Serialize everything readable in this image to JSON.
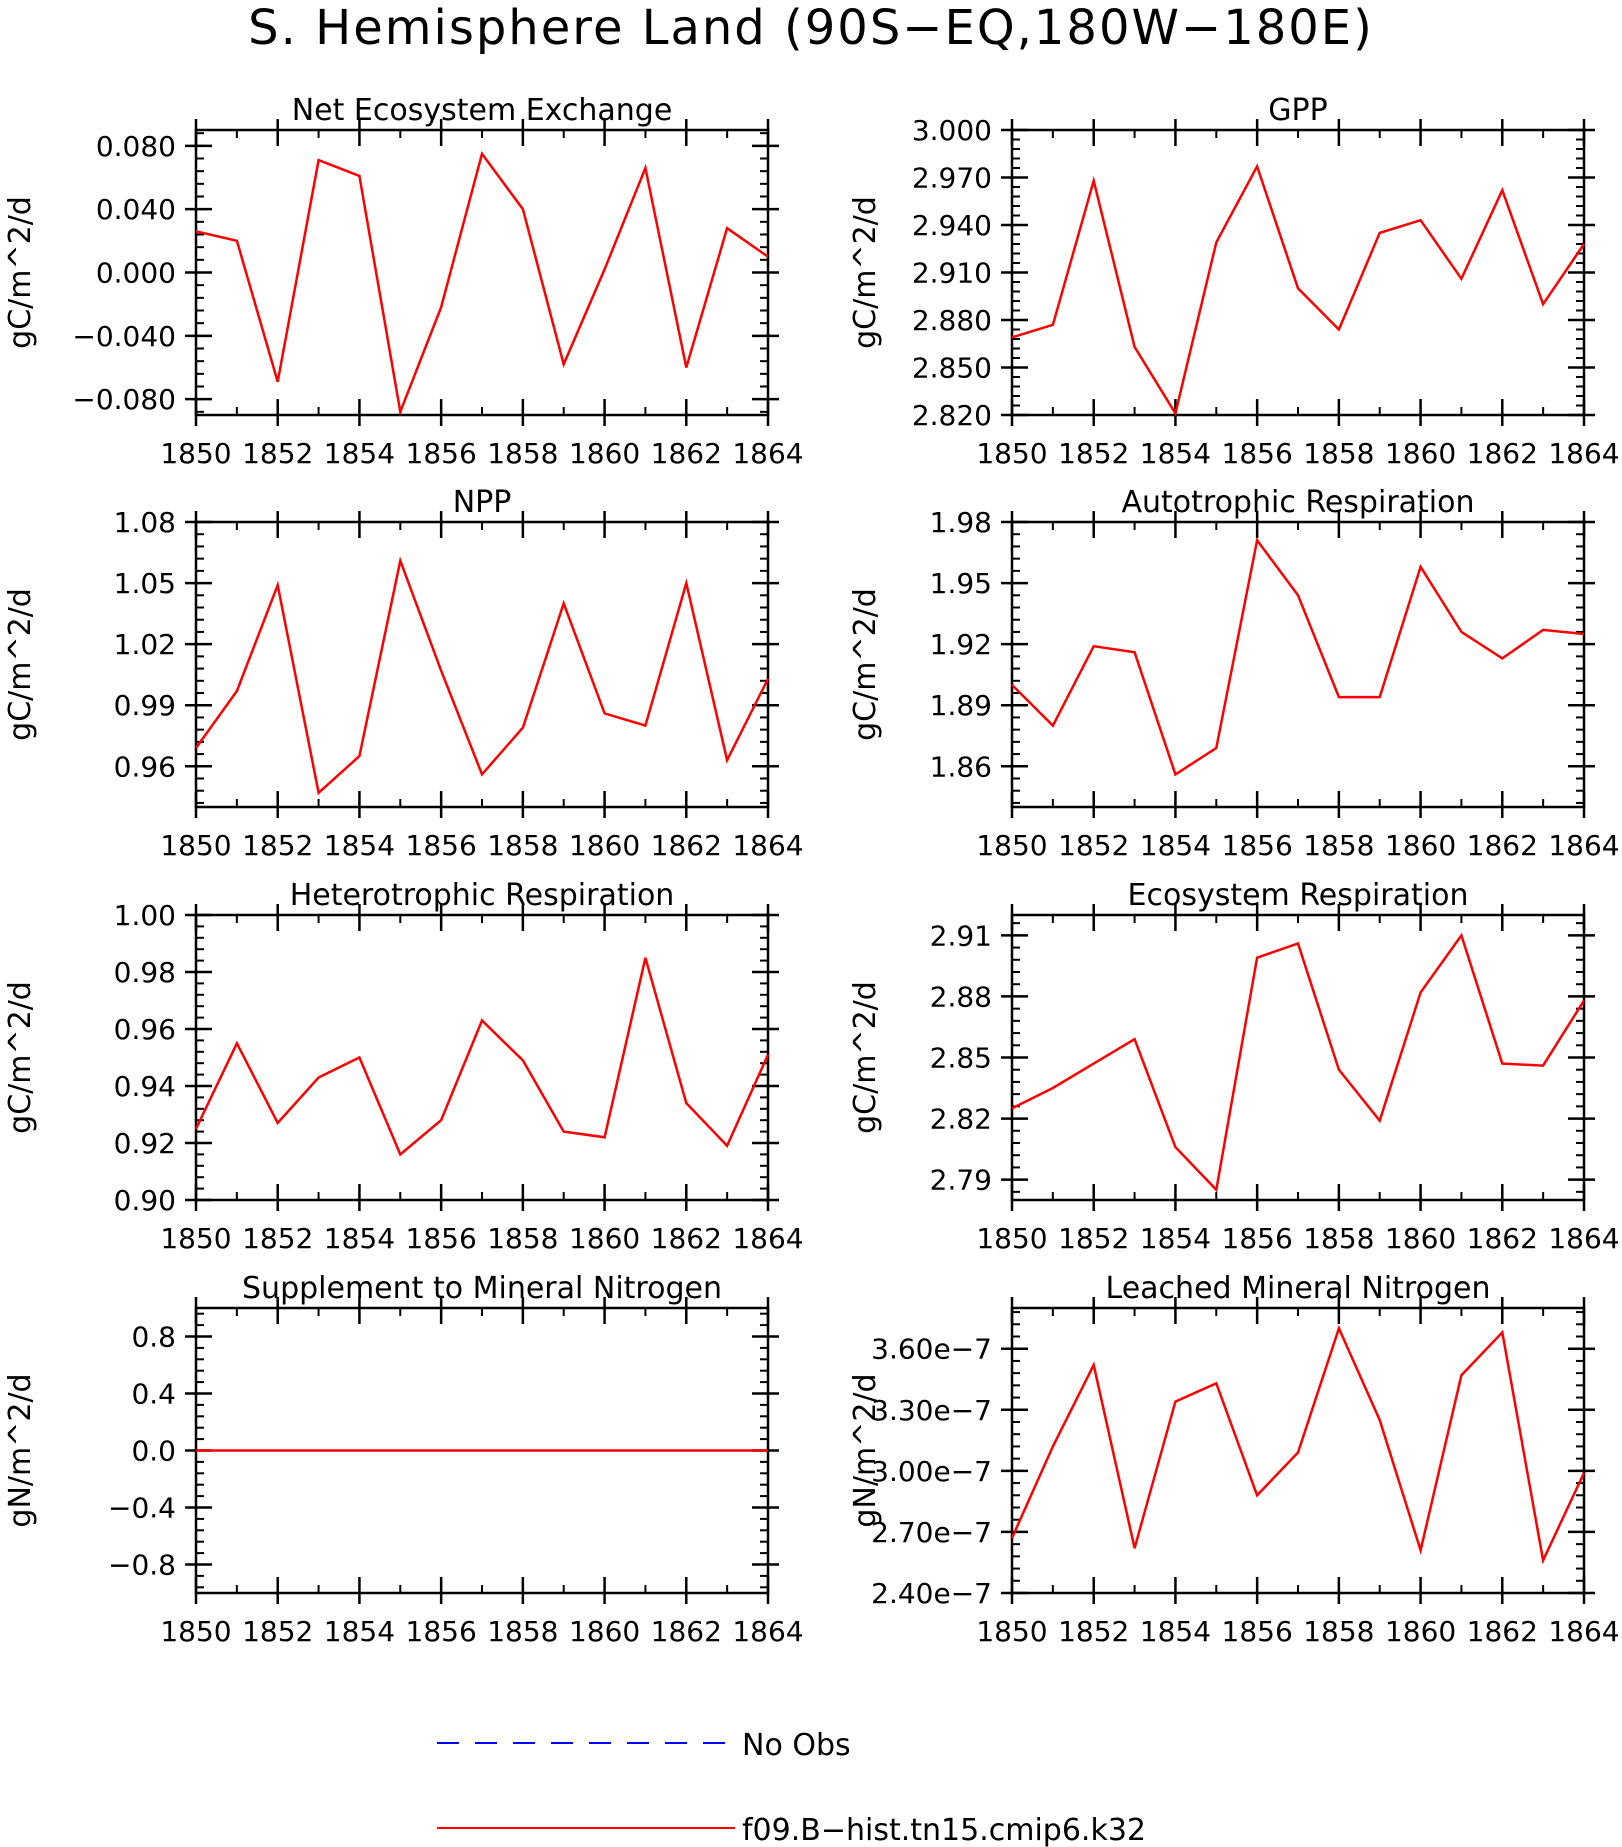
{
  "page_title": "S. Hemisphere Land (90S−EQ,180W−180E)",
  "legend": [
    {
      "label": "No Obs",
      "color": "#0000ff",
      "style": "dashed"
    },
    {
      "label": "f09.B−hist.tn15.cmip6.k32",
      "color": "#ff0000",
      "style": "solid"
    }
  ],
  "chart_data": [
    {
      "type": "line",
      "title": "Net Ecosystem Exchange",
      "ylabel": "gC/m^2/d",
      "x": [
        1850,
        1851,
        1852,
        1853,
        1854,
        1855,
        1856,
        1857,
        1858,
        1859,
        1860,
        1861,
        1862,
        1863,
        1864
      ],
      "xticks": [
        "1850",
        "1852",
        "1854",
        "1856",
        "1858",
        "1860",
        "1862",
        "1864"
      ],
      "xlim": [
        1850,
        1864
      ],
      "ylim": [
        -0.09,
        0.09
      ],
      "yticks": [
        -0.08,
        -0.04,
        0.0,
        0.04,
        0.08
      ],
      "ytick_labels": [
        "−0.080",
        "−0.040",
        "0.000",
        "0.040",
        "0.080"
      ],
      "series": [
        {
          "color": "#ff0000",
          "values": [
            0.026,
            0.02,
            -0.069,
            0.071,
            0.061,
            -0.088,
            -0.022,
            0.075,
            0.04,
            -0.058,
            0.002,
            0.066,
            -0.06,
            0.028,
            0.01
          ]
        }
      ]
    },
    {
      "type": "line",
      "title": "GPP",
      "ylabel": "gC/m^2/d",
      "x": [
        1850,
        1851,
        1852,
        1853,
        1854,
        1855,
        1856,
        1857,
        1858,
        1859,
        1860,
        1861,
        1862,
        1863,
        1864
      ],
      "xticks": [
        "1850",
        "1852",
        "1854",
        "1856",
        "1858",
        "1860",
        "1862",
        "1864"
      ],
      "xlim": [
        1850,
        1864
      ],
      "ylim": [
        2.82,
        3.0
      ],
      "yticks": [
        2.82,
        2.85,
        2.88,
        2.91,
        2.94,
        2.97,
        3.0
      ],
      "ytick_labels": [
        "2.820",
        "2.850",
        "2.880",
        "2.910",
        "2.940",
        "2.970",
        "3.000"
      ],
      "series": [
        {
          "color": "#ff0000",
          "values": [
            2.869,
            2.877,
            2.968,
            2.863,
            2.821,
            2.929,
            2.977,
            2.9,
            2.874,
            2.935,
            2.943,
            2.906,
            2.962,
            2.89,
            2.928
          ]
        }
      ]
    },
    {
      "type": "line",
      "title": "NPP",
      "ylabel": "gC/m^2/d",
      "x": [
        1850,
        1851,
        1852,
        1853,
        1854,
        1855,
        1856,
        1857,
        1858,
        1859,
        1860,
        1861,
        1862,
        1863,
        1864
      ],
      "xticks": [
        "1850",
        "1852",
        "1854",
        "1856",
        "1858",
        "1860",
        "1862",
        "1864"
      ],
      "xlim": [
        1850,
        1864
      ],
      "ylim": [
        0.94,
        1.08
      ],
      "yticks": [
        0.96,
        0.99,
        1.02,
        1.05,
        1.08
      ],
      "ytick_labels": [
        "0.96",
        "0.99",
        "1.02",
        "1.05",
        "1.08"
      ],
      "series": [
        {
          "color": "#ff0000",
          "values": [
            0.969,
            0.997,
            1.049,
            0.947,
            0.965,
            1.061,
            1.007,
            0.956,
            0.979,
            1.04,
            0.986,
            0.98,
            1.05,
            0.963,
            1.003
          ]
        }
      ]
    },
    {
      "type": "line",
      "title": "Autotrophic Respiration",
      "ylabel": "gC/m^2/d",
      "x": [
        1850,
        1851,
        1852,
        1853,
        1854,
        1855,
        1856,
        1857,
        1858,
        1859,
        1860,
        1861,
        1862,
        1863,
        1864
      ],
      "xticks": [
        "1850",
        "1852",
        "1854",
        "1856",
        "1858",
        "1860",
        "1862",
        "1864"
      ],
      "xlim": [
        1850,
        1864
      ],
      "ylim": [
        1.84,
        1.98
      ],
      "yticks": [
        1.86,
        1.89,
        1.92,
        1.95,
        1.98
      ],
      "ytick_labels": [
        "1.86",
        "1.89",
        "1.92",
        "1.95",
        "1.98"
      ],
      "series": [
        {
          "color": "#ff0000",
          "values": [
            1.9,
            1.88,
            1.919,
            1.916,
            1.856,
            1.869,
            1.971,
            1.944,
            1.894,
            1.894,
            1.958,
            1.926,
            1.913,
            1.927,
            1.925
          ]
        }
      ]
    },
    {
      "type": "line",
      "title": "Heterotrophic Respiration",
      "ylabel": "gC/m^2/d",
      "x": [
        1850,
        1851,
        1852,
        1853,
        1854,
        1855,
        1856,
        1857,
        1858,
        1859,
        1860,
        1861,
        1862,
        1863,
        1864
      ],
      "xticks": [
        "1850",
        "1852",
        "1854",
        "1856",
        "1858",
        "1860",
        "1862",
        "1864"
      ],
      "xlim": [
        1850,
        1864
      ],
      "ylim": [
        0.9,
        1.0
      ],
      "yticks": [
        0.9,
        0.92,
        0.94,
        0.96,
        0.98,
        1.0
      ],
      "ytick_labels": [
        "0.90",
        "0.92",
        "0.94",
        "0.96",
        "0.98",
        "1.00"
      ],
      "series": [
        {
          "color": "#ff0000",
          "values": [
            0.925,
            0.955,
            0.927,
            0.943,
            0.95,
            0.916,
            0.928,
            0.963,
            0.949,
            0.924,
            0.922,
            0.985,
            0.934,
            0.919,
            0.951
          ]
        }
      ]
    },
    {
      "type": "line",
      "title": "Ecosystem Respiration",
      "ylabel": "gC/m^2/d",
      "x": [
        1850,
        1851,
        1852,
        1853,
        1854,
        1855,
        1856,
        1857,
        1858,
        1859,
        1860,
        1861,
        1862,
        1863,
        1864
      ],
      "xticks": [
        "1850",
        "1852",
        "1854",
        "1856",
        "1858",
        "1860",
        "1862",
        "1864"
      ],
      "xlim": [
        1850,
        1864
      ],
      "ylim": [
        2.78,
        2.92
      ],
      "yticks": [
        2.79,
        2.82,
        2.85,
        2.88,
        2.91
      ],
      "ytick_labels": [
        "2.79",
        "2.82",
        "2.85",
        "2.88",
        "2.91"
      ],
      "series": [
        {
          "color": "#ff0000",
          "values": [
            2.825,
            2.835,
            2.847,
            2.859,
            2.806,
            2.785,
            2.899,
            2.906,
            2.844,
            2.819,
            2.882,
            2.91,
            2.847,
            2.846,
            2.878
          ]
        }
      ]
    },
    {
      "type": "line",
      "title": "Supplement to Mineral Nitrogen",
      "ylabel": "gN/m^2/d",
      "x": [
        1850,
        1851,
        1852,
        1853,
        1854,
        1855,
        1856,
        1857,
        1858,
        1859,
        1860,
        1861,
        1862,
        1863,
        1864
      ],
      "xticks": [
        "1850",
        "1852",
        "1854",
        "1856",
        "1858",
        "1860",
        "1862",
        "1864"
      ],
      "xlim": [
        1850,
        1864
      ],
      "ylim": [
        -1.0,
        1.0
      ],
      "yticks": [
        -0.8,
        -0.4,
        0.0,
        0.4,
        0.8
      ],
      "ytick_labels": [
        "−0.8",
        "−0.4",
        "0.0",
        "0.4",
        "0.8"
      ],
      "series": [
        {
          "color": "#ff0000",
          "values": [
            0,
            0,
            0,
            0,
            0,
            0,
            0,
            0,
            0,
            0,
            0,
            0,
            0,
            0,
            0
          ]
        }
      ]
    },
    {
      "type": "line",
      "title": "Leached Mineral Nitrogen",
      "ylabel": "gN/m^2/d",
      "x": [
        1850,
        1851,
        1852,
        1853,
        1854,
        1855,
        1856,
        1857,
        1858,
        1859,
        1860,
        1861,
        1862,
        1863,
        1864
      ],
      "xticks": [
        "1850",
        "1852",
        "1854",
        "1856",
        "1858",
        "1860",
        "1862",
        "1864"
      ],
      "xlim": [
        1850,
        1864
      ],
      "ylim": [
        2.4e-07,
        3.8e-07
      ],
      "yticks": [
        2.4e-07,
        2.7e-07,
        3e-07,
        3.3e-07,
        3.6e-07
      ],
      "ytick_labels": [
        "2.40e−7",
        "2.70e−7",
        "3.00e−7",
        "3.30e−7",
        "3.60e−7"
      ],
      "series": [
        {
          "color": "#ff0000",
          "values": [
            2.67e-07,
            3.12e-07,
            3.52e-07,
            2.62e-07,
            3.34e-07,
            3.43e-07,
            2.88e-07,
            3.09e-07,
            3.7e-07,
            3.25e-07,
            2.61e-07,
            3.47e-07,
            3.68e-07,
            2.56e-07,
            2.99e-07
          ]
        }
      ]
    }
  ]
}
